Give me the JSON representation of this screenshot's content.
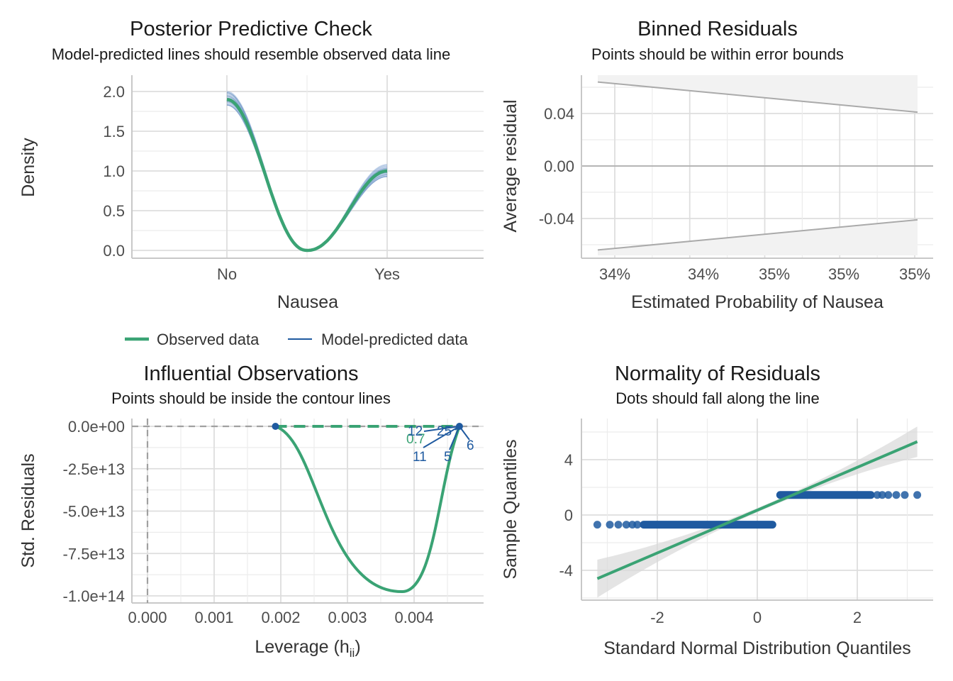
{
  "colors": {
    "observed": "#3aa374",
    "predicted": "#1f5aa0",
    "predicted_light": "#7d9fd0",
    "ribbon": "#dcdcdc",
    "ref_line": "#aaaaaa"
  },
  "chart_data": [
    {
      "id": "ppc",
      "type": "line",
      "title": "Posterior Predictive Check",
      "subtitle": "Model-predicted lines should resemble observed data line",
      "xlabel": "Nausea",
      "ylabel": "Density",
      "x_ticks": [
        "No",
        "Yes"
      ],
      "y_ticks": [
        "0.0",
        "0.5",
        "1.0",
        "1.5",
        "2.0"
      ],
      "ylim": [
        -0.1,
        2.1
      ],
      "observed_peaks": {
        "No": 1.9,
        "Yes": 1.0
      },
      "predicted_peak_ranges": {
        "No": [
          1.83,
          2.0
        ],
        "Yes": [
          0.93,
          1.08
        ]
      },
      "grid": true,
      "legend": [
        {
          "name": "Observed data",
          "type": "observed"
        },
        {
          "name": "Model-predicted data",
          "type": "predicted"
        }
      ],
      "legend_position": "bottom"
    },
    {
      "id": "binned",
      "type": "line",
      "title": "Binned Residuals",
      "subtitle": "Points should be within error bounds",
      "xlabel": "Estimated Probability of Nausea",
      "ylabel": "Average residual",
      "x_ticks": [
        "34%",
        "34%",
        "35%",
        "35%",
        "35%"
      ],
      "y_ticks": [
        "-0.04",
        "0.00",
        "0.04"
      ],
      "ylim": [
        -0.07,
        0.07
      ],
      "upper_bound": [
        0.064,
        0.041
      ],
      "lower_bound": [
        -0.064,
        -0.041
      ],
      "zero_line": 0,
      "grid": true
    },
    {
      "id": "influential",
      "type": "scatter",
      "title": "Influential Observations",
      "subtitle": "Points should be inside the contour lines",
      "xlabel": "Leverage (h",
      "xlabel_sub": "ii",
      "xlabel_end": ")",
      "ylabel": "Std. Residuals",
      "x_ticks": [
        "0.000",
        "0.001",
        "0.002",
        "0.003",
        "0.004"
      ],
      "y_ticks": [
        "0.0e+00",
        "-2.5e+13",
        "-5.0e+13",
        "-7.5e+13",
        "-1.0e+14"
      ],
      "xlim": [
        -0.00015,
        0.00487
      ],
      "ylim": [
        -102000000000000.0,
        6000000000000.0
      ],
      "contour_label": "0.7",
      "points": [
        {
          "x": 0.00192,
          "y": 0
        },
        {
          "x": 0.00468,
          "y": 0
        }
      ],
      "smooth_min": {
        "x": 0.00383,
        "y": -97500000000000.0
      },
      "point_labels": [
        "12",
        "25",
        "11",
        "5",
        "6"
      ],
      "grid": true
    },
    {
      "id": "qq",
      "type": "scatter",
      "title": "Normality of Residuals",
      "subtitle": "Dots should fall along the line",
      "xlabel": "Standard Normal Distribution Quantiles",
      "ylabel": "Sample Quantiles",
      "x_ticks": [
        "-2",
        "0",
        "2"
      ],
      "y_ticks": [
        "-4",
        "0",
        "4"
      ],
      "xlim": [
        -3.5,
        3.5
      ],
      "ylim": [
        -6.3,
        7.0
      ],
      "low_cluster": {
        "y": -0.7,
        "x_from": -3.2,
        "x_to": 0.38
      },
      "high_cluster": {
        "y": 1.45,
        "x_from": 0.38,
        "x_to": 3.2
      },
      "fit_line": {
        "x": [
          -3.2,
          3.2
        ],
        "y": [
          -4.6,
          5.3
        ]
      },
      "grid": true
    }
  ]
}
